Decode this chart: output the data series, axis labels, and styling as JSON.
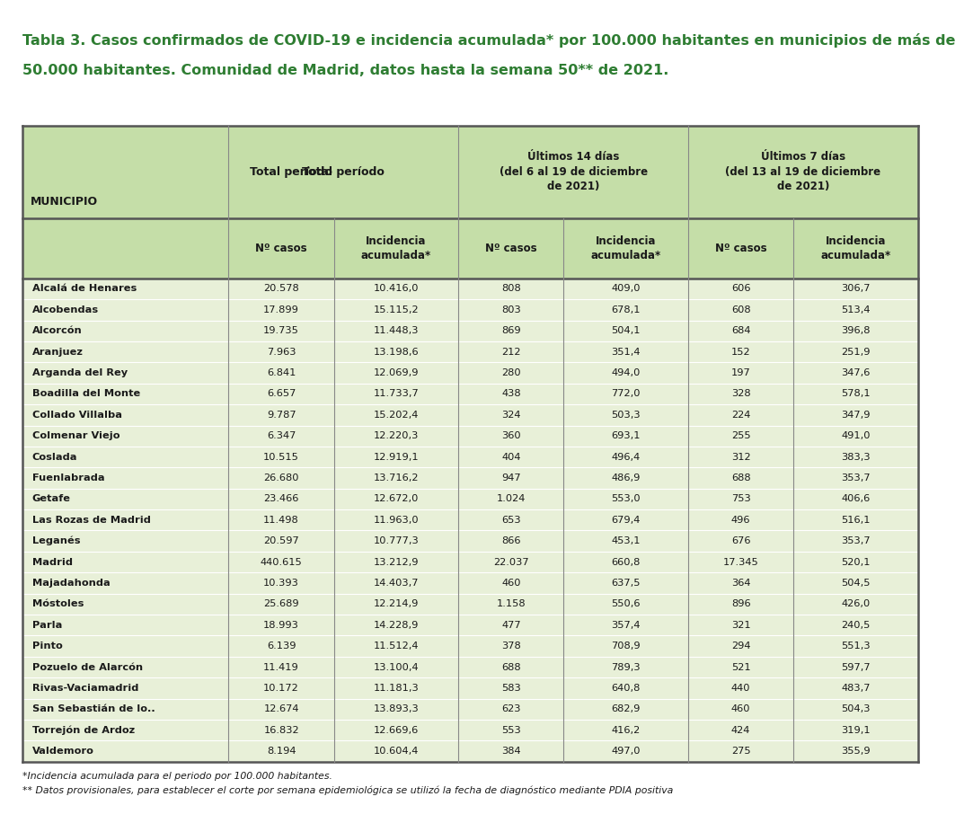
{
  "title_line1": "Tabla 3. Casos confirmados de COVID-19 e incidencia acumulada* por 100.000 habitantes en municipios de más de",
  "title_line2": "50.000 habitantes. Comunidad de Madrid, datos hasta la semana 50** de 2021.",
  "title_color": "#2e7d32",
  "background_color": "#ffffff",
  "header_bg_color": "#c5dea8",
  "table_bg_color": "#e8f0d8",
  "row_line_color": "#c0c8b0",
  "header_text_color": "#1a1a1a",
  "row_text_color": "#1a1a1a",
  "footnote1": "*Incidencia acumulada para el periodo por 100.000 habitantes.",
  "footnote2": "** Datos provisionales, para establecer el corte por semana epidemiológica se utilizó la fecha de diagnóstico mediante PDIA positiva",
  "rows": [
    [
      "Alcalá de Henares",
      "20.578",
      "10.416,0",
      "808",
      "409,0",
      "606",
      "306,7"
    ],
    [
      "Alcobendas",
      "17.899",
      "15.115,2",
      "803",
      "678,1",
      "608",
      "513,4"
    ],
    [
      "Alcorcón",
      "19.735",
      "11.448,3",
      "869",
      "504,1",
      "684",
      "396,8"
    ],
    [
      "Aranjuez",
      "7.963",
      "13.198,6",
      "212",
      "351,4",
      "152",
      "251,9"
    ],
    [
      "Arganda del Rey",
      "6.841",
      "12.069,9",
      "280",
      "494,0",
      "197",
      "347,6"
    ],
    [
      "Boadilla del Monte",
      "6.657",
      "11.733,7",
      "438",
      "772,0",
      "328",
      "578,1"
    ],
    [
      "Collado Villalba",
      "9.787",
      "15.202,4",
      "324",
      "503,3",
      "224",
      "347,9"
    ],
    [
      "Colmenar Viejo",
      "6.347",
      "12.220,3",
      "360",
      "693,1",
      "255",
      "491,0"
    ],
    [
      "Coslada",
      "10.515",
      "12.919,1",
      "404",
      "496,4",
      "312",
      "383,3"
    ],
    [
      "Fuenlabrada",
      "26.680",
      "13.716,2",
      "947",
      "486,9",
      "688",
      "353,7"
    ],
    [
      "Getafe",
      "23.466",
      "12.672,0",
      "1.024",
      "553,0",
      "753",
      "406,6"
    ],
    [
      "Las Rozas de Madrid",
      "11.498",
      "11.963,0",
      "653",
      "679,4",
      "496",
      "516,1"
    ],
    [
      "Leganés",
      "20.597",
      "10.777,3",
      "866",
      "453,1",
      "676",
      "353,7"
    ],
    [
      "Madrid",
      "440.615",
      "13.212,9",
      "22.037",
      "660,8",
      "17.345",
      "520,1"
    ],
    [
      "Majadahonda",
      "10.393",
      "14.403,7",
      "460",
      "637,5",
      "364",
      "504,5"
    ],
    [
      "Móstoles",
      "25.689",
      "12.214,9",
      "1.158",
      "550,6",
      "896",
      "426,0"
    ],
    [
      "Parla",
      "18.993",
      "14.228,9",
      "477",
      "357,4",
      "321",
      "240,5"
    ],
    [
      "Pinto",
      "6.139",
      "11.512,4",
      "378",
      "708,9",
      "294",
      "551,3"
    ],
    [
      "Pozuelo de Alarcón",
      "11.419",
      "13.100,4",
      "688",
      "789,3",
      "521",
      "597,7"
    ],
    [
      "Rivas-Vaciamadrid",
      "10.172",
      "11.181,3",
      "583",
      "640,8",
      "440",
      "483,7"
    ],
    [
      "San Sebastián de lo..",
      "12.674",
      "13.893,3",
      "623",
      "682,9",
      "460",
      "504,3"
    ],
    [
      "Torrejón de Ardoz",
      "16.832",
      "12.669,6",
      "553",
      "416,2",
      "424",
      "319,1"
    ],
    [
      "Valdemoro",
      "8.194",
      "10.604,4",
      "384",
      "497,0",
      "275",
      "355,9"
    ]
  ]
}
